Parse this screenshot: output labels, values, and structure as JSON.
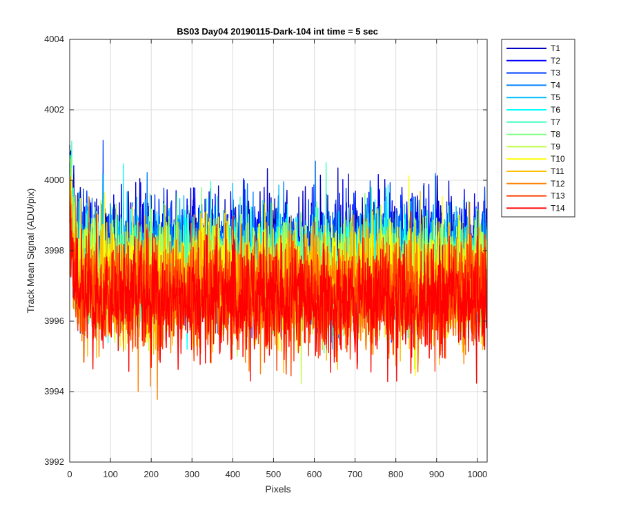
{
  "chart_data": {
    "type": "line",
    "title": "BS03 Day04 20190115-Dark-104 int time = 5 sec",
    "xlabel": "Pixels",
    "ylabel": "Track Mean Signal (ADU/pix)",
    "xlim": [
      0,
      1024
    ],
    "ylim": [
      3992,
      4004
    ],
    "xticks": [
      0,
      100,
      200,
      300,
      400,
      500,
      600,
      700,
      800,
      900,
      1000
    ],
    "yticks": [
      3992,
      3994,
      3996,
      3998,
      4000,
      4002,
      4004
    ],
    "grid": true,
    "legend_position": "outside-right",
    "n_pixels": 1024,
    "series": [
      {
        "name": "T1",
        "color": "#0000bf",
        "mean": 3998.1,
        "noise": 0.75,
        "first_value": 4001.0,
        "max_value": 4002.6,
        "min_value": 3995.6,
        "last_value": 3999.0
      },
      {
        "name": "T2",
        "color": "#0000ff",
        "mean": 3997.95,
        "noise": 0.75,
        "first_value": 4000.8,
        "max_value": 4001.9,
        "min_value": 3995.5,
        "last_value": 3999.1
      },
      {
        "name": "T3",
        "color": "#0040ff",
        "mean": 3997.8,
        "noise": 0.75,
        "first_value": 4000.5,
        "max_value": 4001.4,
        "min_value": 3995.4,
        "last_value": 3998.9
      },
      {
        "name": "T4",
        "color": "#0080ff",
        "mean": 3997.7,
        "noise": 0.75,
        "first_value": 4000.3,
        "max_value": 4001.0,
        "min_value": 3995.3,
        "last_value": 3998.8
      },
      {
        "name": "T5",
        "color": "#00bfff",
        "mean": 3997.6,
        "noise": 0.75,
        "first_value": 4000.2,
        "max_value": 4000.9,
        "min_value": 3995.2,
        "last_value": 3998.7
      },
      {
        "name": "T6",
        "color": "#00ffff",
        "mean": 3997.55,
        "noise": 0.75,
        "first_value": 4000.1,
        "max_value": 4001.4,
        "min_value": 3995.2,
        "last_value": 3998.6
      },
      {
        "name": "T7",
        "color": "#40ffbf",
        "mean": 3997.45,
        "noise": 0.75,
        "first_value": 4000.0,
        "max_value": 4001.2,
        "min_value": 3995.1,
        "last_value": 3998.5
      },
      {
        "name": "T8",
        "color": "#80ff80",
        "mean": 3997.4,
        "noise": 0.75,
        "first_value": 3999.9,
        "max_value": 4001.7,
        "min_value": 3994.3,
        "last_value": 3998.4
      },
      {
        "name": "T9",
        "color": "#bfff40",
        "mean": 3997.3,
        "noise": 0.75,
        "first_value": 3999.8,
        "max_value": 4001.5,
        "min_value": 3994.2,
        "last_value": 3998.3
      },
      {
        "name": "T10",
        "color": "#ffff00",
        "mean": 3997.15,
        "noise": 0.8,
        "first_value": 3999.6,
        "max_value": 4001.3,
        "min_value": 3993.4,
        "last_value": 3998.0
      },
      {
        "name": "T11",
        "color": "#ffbf00",
        "mean": 3997.0,
        "noise": 0.8,
        "first_value": 3999.4,
        "max_value": 4000.7,
        "min_value": 3993.5,
        "last_value": 3997.8
      },
      {
        "name": "T12",
        "color": "#ff8000",
        "mean": 3996.85,
        "noise": 0.8,
        "first_value": 3999.2,
        "max_value": 4000.6,
        "min_value": 3993.3,
        "last_value": 3997.6
      },
      {
        "name": "T13",
        "color": "#ff4000",
        "mean": 3996.7,
        "noise": 0.8,
        "first_value": 3999.0,
        "max_value": 4000.4,
        "min_value": 3993.0,
        "last_value": 3997.4
      },
      {
        "name": "T14",
        "color": "#ff0000",
        "mean": 3996.6,
        "noise": 0.8,
        "first_value": 3998.8,
        "max_value": 4000.2,
        "min_value": 3993.0,
        "last_value": 3997.2
      }
    ]
  }
}
